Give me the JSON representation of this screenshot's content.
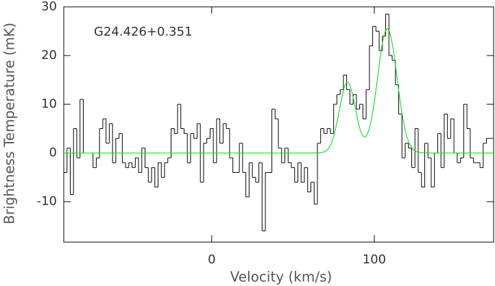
{
  "chart_data": {
    "type": "step",
    "annotation": "G24.426+0.351",
    "x_label": "Velocity (km/s)",
    "y_label": "Brightness Temperature (mK)",
    "xlim": [
      -91,
      173.4
    ],
    "ylim": [
      -18.3,
      30
    ],
    "xticks": [
      0,
      100
    ],
    "yticks": [
      -10,
      0,
      10,
      20,
      30
    ],
    "x": [
      -90,
      -88,
      -86,
      -84,
      -82,
      -80,
      -78,
      -76,
      -74,
      -72,
      -70,
      -68,
      -66,
      -64,
      -62,
      -60,
      -58,
      -56,
      -54,
      -52,
      -50,
      -48,
      -46,
      -44,
      -42,
      -40,
      -38,
      -36,
      -34,
      -32,
      -30,
      -28,
      -26,
      -24,
      -22,
      -20,
      -18,
      -16,
      -14,
      -12,
      -10,
      -8,
      -6,
      -4,
      -2,
      0,
      2,
      4,
      6,
      8,
      10,
      12,
      14,
      16,
      18,
      20,
      22,
      24,
      26,
      28,
      30,
      32,
      34,
      36,
      38,
      40,
      42,
      44,
      46,
      48,
      50,
      52,
      54,
      56,
      58,
      60,
      62,
      64,
      66,
      68,
      70,
      72,
      74,
      76,
      78,
      80,
      82,
      84,
      86,
      88,
      90,
      92,
      94,
      96,
      98,
      100,
      102,
      104,
      106,
      108,
      110,
      112,
      114,
      116,
      118,
      120,
      122,
      124,
      126,
      128,
      130,
      132,
      134,
      136,
      138,
      140,
      142,
      144,
      146,
      148,
      150,
      152,
      154,
      156,
      158,
      160,
      162,
      164,
      166,
      168,
      170,
      172
    ],
    "series": [
      {
        "color": "#000000",
        "values": [
          -4,
          1,
          -8.5,
          5,
          -1,
          11,
          0,
          0,
          0,
          -3,
          -1,
          5,
          7,
          2,
          6,
          -2,
          3,
          4,
          -2,
          -3,
          -2,
          -3,
          -1,
          -4,
          1,
          -3,
          -6,
          -3,
          -7,
          -2,
          -5,
          -2,
          -1,
          5,
          4,
          10,
          5,
          4,
          -2,
          4,
          3,
          6,
          -6,
          2,
          3,
          5,
          -2,
          7,
          2,
          6,
          5,
          -1,
          -4,
          -4,
          2,
          -4,
          -9,
          -2,
          -5,
          -6,
          -2,
          -16,
          -4,
          -4,
          9,
          7,
          1,
          -2,
          1,
          -2,
          -3,
          -6,
          -2,
          -6,
          -3,
          -8,
          -6,
          -10.5,
          2,
          5,
          4,
          5,
          4,
          10,
          12,
          13,
          16,
          13,
          10,
          12,
          9,
          10,
          7,
          13,
          22,
          26,
          25,
          21,
          24,
          28.5,
          20,
          19,
          14,
          8,
          -1,
          2,
          1,
          -3,
          5,
          -4,
          -7,
          2,
          -1,
          -7,
          0,
          4,
          -3,
          8,
          3,
          7,
          0,
          -2,
          -1,
          10,
          5,
          -1,
          -2,
          -2,
          -3,
          2,
          3,
          3
        ]
      }
    ],
    "fit": {
      "color": "#22dd22",
      "components": [
        {
          "amplitude": 14.5,
          "center": 83.5,
          "sigma": 5
        },
        {
          "amplitude": 25.5,
          "center": 108,
          "sigma": 6
        }
      ]
    }
  }
}
